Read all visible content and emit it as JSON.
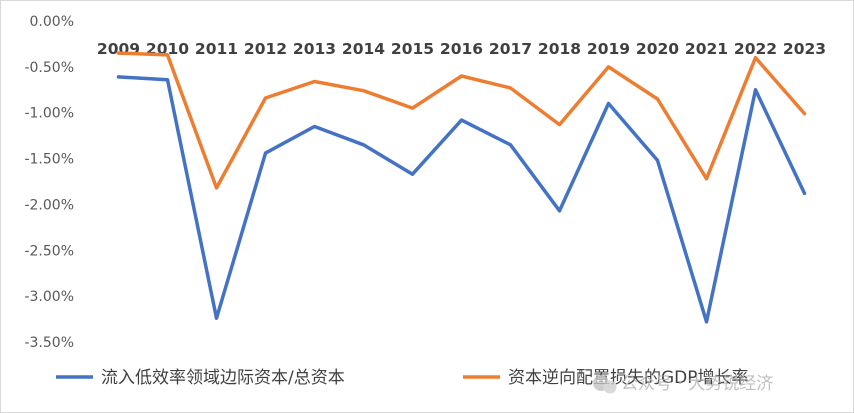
{
  "chart_data": {
    "type": "line",
    "x": [
      "2009",
      "2010",
      "2011",
      "2012",
      "2013",
      "2014",
      "2015",
      "2016",
      "2017",
      "2018",
      "2019",
      "2020",
      "2021",
      "2022",
      "2023"
    ],
    "series": [
      {
        "name": "流入低效率领域边际资本/总资本",
        "color": "#4472C4",
        "values": [
          -0.61,
          -0.64,
          -3.24,
          -1.44,
          -1.15,
          -1.35,
          -1.67,
          -1.08,
          -1.35,
          -2.07,
          -0.9,
          -1.52,
          -3.28,
          -0.75,
          -1.88
        ]
      },
      {
        "name": "资本逆向配置损失的GDP增长率",
        "color": "#ED7D31",
        "values": [
          -0.35,
          -0.37,
          -1.82,
          -0.84,
          -0.66,
          -0.76,
          -0.95,
          -0.6,
          -0.73,
          -1.13,
          -0.5,
          -0.85,
          -1.72,
          -0.4,
          -1.01
        ]
      }
    ],
    "y_ticks": [
      "0.00%",
      "-0.50%",
      "-1.00%",
      "-1.50%",
      "-2.00%",
      "-2.50%",
      "-3.00%",
      "-3.50%"
    ],
    "ylim": [
      -3.5,
      0
    ],
    "x_axis_position": "top",
    "grid": false,
    "legend_position": "bottom"
  },
  "watermark": {
    "icon": "wechat-icon",
    "text": "公众号 · 大势锐经济"
  }
}
